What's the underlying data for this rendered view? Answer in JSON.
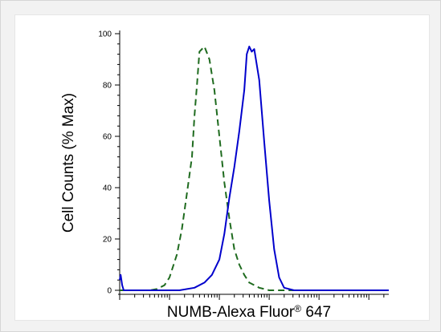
{
  "chart_data": {
    "type": "line",
    "xlabel_main": "NUMB-Alexa Fluor",
    "xlabel_sup": "®",
    "xlabel_tail": " 647",
    "ylabel": "Cell Counts (% Max)",
    "ylim": [
      0,
      100
    ],
    "yticks": [
      "0",
      "20",
      "40",
      "60",
      "80",
      "100"
    ],
    "xscale": "log",
    "xlim": [
      0.0,
      5.4
    ],
    "grid": false,
    "legend": "none",
    "series": [
      {
        "style": "dashed",
        "color": "#1f6b1f",
        "x": [
          0.0,
          0.4,
          0.6,
          0.75,
          0.9,
          1.0,
          1.15,
          1.25,
          1.35,
          1.45,
          1.5,
          1.55,
          1.6,
          1.7,
          1.8,
          1.9,
          2.0,
          2.1,
          2.2,
          2.3,
          2.4,
          2.5,
          2.6,
          2.8,
          3.0,
          3.4,
          5.4
        ],
        "y": [
          0,
          0,
          0,
          0.5,
          2,
          5,
          14,
          24,
          38,
          52,
          68,
          80,
          93,
          95,
          90,
          78,
          60,
          42,
          28,
          16,
          10,
          6,
          3,
          1,
          0,
          0,
          0
        ]
      },
      {
        "style": "solid",
        "color": "#0000cc",
        "x": [
          0.0,
          0.02,
          0.05,
          0.08,
          0.12,
          0.2,
          1.2,
          1.5,
          1.7,
          1.85,
          2.0,
          2.1,
          2.2,
          2.3,
          2.4,
          2.5,
          2.55,
          2.6,
          2.65,
          2.7,
          2.8,
          2.9,
          3.0,
          3.1,
          3.2,
          3.3,
          3.5,
          5.4
        ],
        "y": [
          4,
          6,
          2,
          0,
          0,
          0,
          0,
          1,
          3,
          6,
          12,
          22,
          36,
          48,
          62,
          78,
          92,
          95,
          93,
          94,
          82,
          58,
          35,
          16,
          5,
          1,
          0,
          0
        ]
      }
    ]
  }
}
